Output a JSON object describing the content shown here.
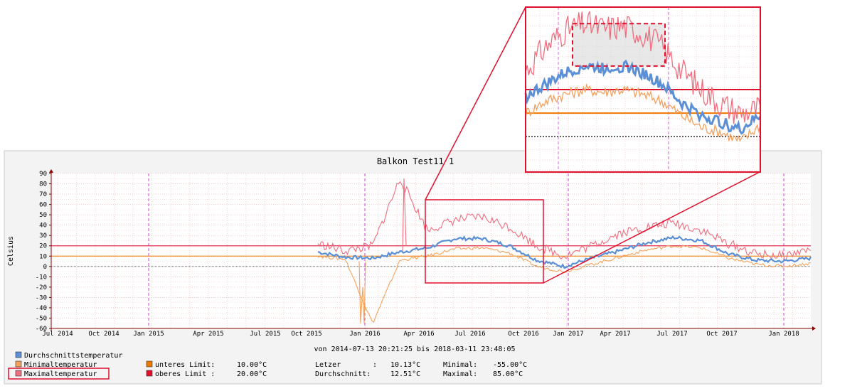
{
  "chart_data": {
    "type": "line",
    "title": "Balkon Test11 1",
    "ylabel": "Celsius",
    "xlabel": "",
    "ylim": [
      -60,
      90
    ],
    "yticks": [
      "90",
      "80",
      "70",
      "60",
      "50",
      "40",
      "30",
      "20",
      "10",
      "0",
      "-10",
      "-20",
      "-30",
      "-40",
      "-50",
      "-60"
    ],
    "xticks": [
      "Jul 2014",
      "Oct 2014",
      "Jan 2015",
      "Apr 2015",
      "Jul 2015",
      "Oct 2015",
      "Jan 2016",
      "Apr 2016",
      "Jul 2016",
      "Oct 2016",
      "Jan 2017",
      "Apr 2017",
      "Jul 2017",
      "Oct 2017",
      "Jan 2018"
    ],
    "date_range": "von 2014-07-13 20:21:25 bis 2018-03-11 23:48:05",
    "x_anchor_dates": [
      "2015-10-25",
      "2016-01-01",
      "2016-04-01",
      "2016-07-01",
      "2016-10-01",
      "2017-01-01",
      "2017-04-01",
      "2017-07-01",
      "2017-10-01",
      "2018-01-01",
      "2018-03-11"
    ],
    "series": [
      {
        "name": "Durchschnittstemperatur",
        "color": "#5b8fd6",
        "values": [
          14,
          9,
          8,
          14,
          18,
          27,
          27,
          20,
          6,
          0,
          8,
          15,
          23,
          28,
          25,
          12,
          6,
          5,
          8
        ]
      },
      {
        "name": "Minimaltemperatur",
        "color": "#f5a05a",
        "values": [
          10,
          7,
          -55,
          6,
          10,
          17,
          18,
          13,
          0,
          -5,
          2,
          9,
          16,
          20,
          18,
          8,
          2,
          0,
          3
        ]
      },
      {
        "name": "Maximaltemperatur",
        "color": "#f06d7e",
        "values": [
          22,
          15,
          20,
          85,
          35,
          45,
          48,
          38,
          20,
          10,
          20,
          32,
          38,
          42,
          35,
          22,
          12,
          10,
          17
        ]
      }
    ],
    "limits": [
      {
        "name": "unteres Limit",
        "value": 10,
        "label": "10.00°C",
        "color": "#f07800"
      },
      {
        "name": "oberes Limit",
        "value": 20,
        "label": "20.00°C",
        "color": "#e0102c"
      }
    ],
    "stats": {
      "letzer_label": "Letzer",
      "letzer_value": "10.13°C",
      "durchschnitt_label": "Durchschnitt:",
      "durchschnitt_value": "12.51°C",
      "minimal_label": "Minimal:",
      "minimal_value": "-55.00°C",
      "maximal_label": "Maximal:",
      "maximal_value": "85.00°C"
    },
    "legend_highlight": "Maximaltemperatur",
    "grid": true
  }
}
